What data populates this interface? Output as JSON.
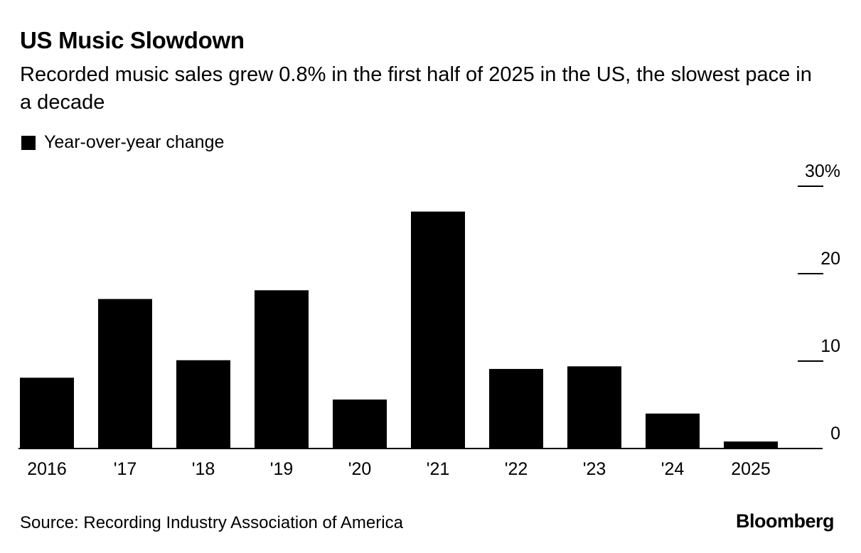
{
  "header": {
    "title": "US Music Slowdown",
    "subtitle": "Recorded music sales grew 0.8% in the first half of 2025 in the US, the slowest pace in a decade"
  },
  "legend": {
    "label": "Year-over-year change"
  },
  "footer": {
    "source": "Source: Recording Industry Association of America",
    "brand": "Bloomberg"
  },
  "colors": {
    "bar": "#000000",
    "axis": "#000000",
    "background": "#ffffff"
  },
  "chart_data": {
    "type": "bar",
    "categories": [
      "2016",
      "'17",
      "'18",
      "'19",
      "'20",
      "'21",
      "'22",
      "'23",
      "'24",
      "2025"
    ],
    "series": [
      {
        "name": "Year-over-year change",
        "values": [
          8.1,
          17.1,
          10.1,
          18.1,
          5.6,
          27.1,
          9.1,
          9.4,
          4.0,
          0.8
        ]
      }
    ],
    "ylim": [
      0,
      30
    ],
    "yticks": [
      0,
      10,
      20,
      30
    ],
    "ytick_labels": [
      "0",
      "10",
      "20",
      "30%"
    ],
    "y_axis_position": "right",
    "grid": false,
    "legend_position": "top-left"
  }
}
